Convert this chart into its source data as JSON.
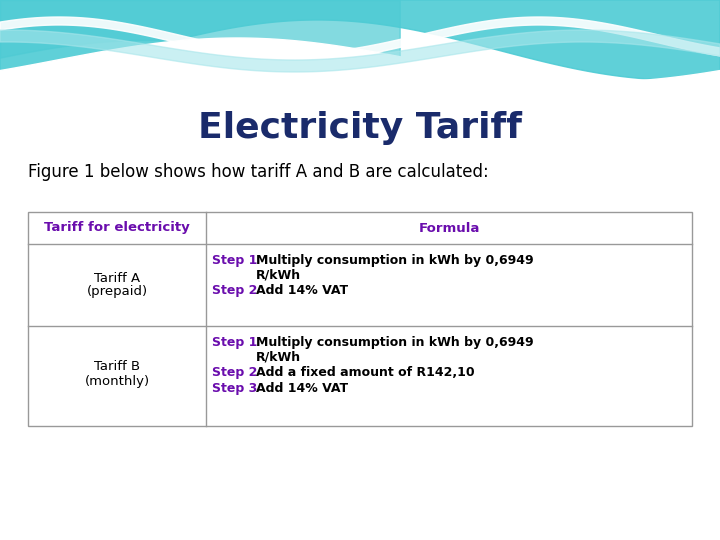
{
  "title": "Electricity Tariff",
  "subtitle": "Figure 1 below shows how tariff A and B are calculated:",
  "title_color": "#1a2b6b",
  "subtitle_color": "#000000",
  "table_border_color": "#999999",
  "header_text_color": "#6a0dad",
  "header_col1": "Tariff for electricity",
  "header_col2": "Formula",
  "row1_col1_line1": "Tariff A",
  "row1_col1_line2": "(prepaid)",
  "row2_col1_line1": "Tariff B",
  "row2_col1_line2": "(monthly)",
  "step_color": "#6a0dad",
  "text_color": "#000000",
  "teal_color": "#4ecbd4",
  "teal_light": "#a8e6eb",
  "white": "#ffffff"
}
